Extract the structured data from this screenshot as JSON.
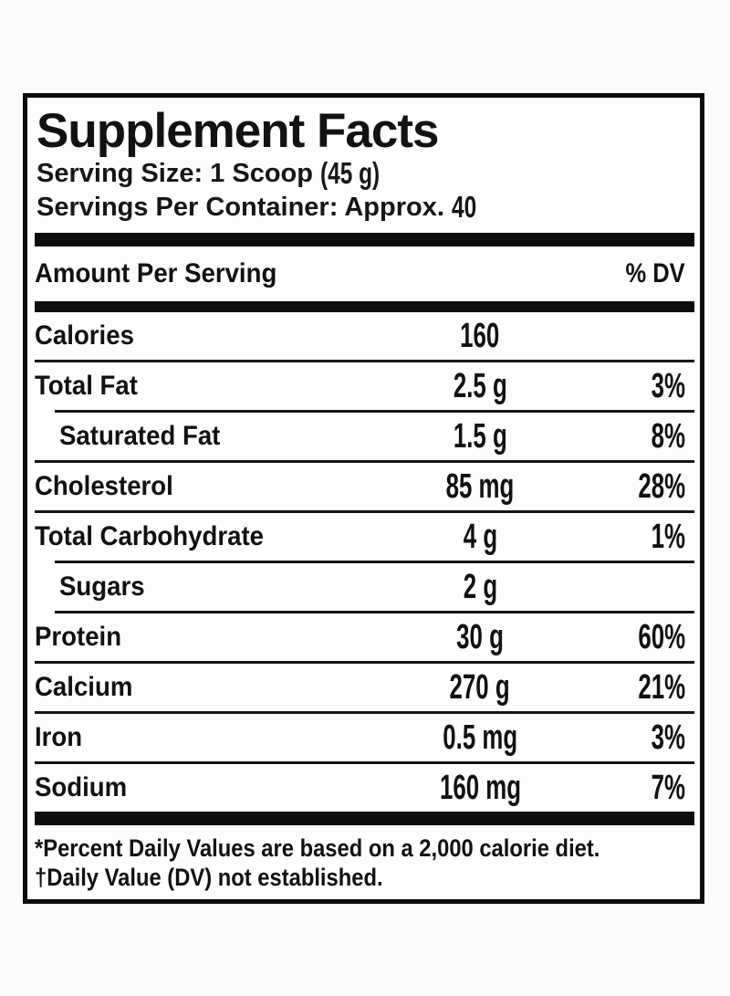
{
  "label": {
    "title": "Supplement Facts",
    "serving_size": {
      "prefix": "Serving Size: 1 Scoop",
      "value": "(45 g)"
    },
    "servings_per_container": {
      "prefix": "Servings Per Container: Approx.",
      "value": "40"
    },
    "header": {
      "amount_per_serving": "Amount Per Serving",
      "percent_dv": "% DV"
    },
    "rows": [
      {
        "name": "Calories",
        "amount": "160",
        "dv": "",
        "indent": false,
        "divider": "full"
      },
      {
        "name": "Total Fat",
        "amount": "2.5 g",
        "dv": "3%",
        "indent": false,
        "divider": "indented"
      },
      {
        "name": "Saturated Fat",
        "amount": "1.5 g",
        "dv": "8%",
        "indent": true,
        "divider": "full"
      },
      {
        "name": "Cholesterol",
        "amount": "85 mg",
        "dv": "28%",
        "indent": false,
        "divider": "full"
      },
      {
        "name": "Total Carbohydrate",
        "amount": "4 g",
        "dv": "1%",
        "indent": false,
        "divider": "indented"
      },
      {
        "name": "Sugars",
        "amount": "2 g",
        "dv": "",
        "indent": true,
        "divider": "indented"
      },
      {
        "name": "Protein",
        "amount": "30 g",
        "dv": "60%",
        "indent": false,
        "divider": "full"
      },
      {
        "name": "Calcium",
        "amount": "270 g",
        "dv": "21%",
        "indent": false,
        "divider": "full"
      },
      {
        "name": "Iron",
        "amount": "0.5 mg",
        "dv": "3%",
        "indent": false,
        "divider": "full"
      },
      {
        "name": "Sodium",
        "amount": "160 mg",
        "dv": "7%",
        "indent": false,
        "divider": "none"
      }
    ],
    "footnotes": [
      "*Percent Daily Values are based on a 2,000 calorie diet.",
      "†Daily Value (DV) not established."
    ],
    "colors": {
      "text": "#111111",
      "border": "#0d0d0d",
      "background": "#fdfdfd"
    }
  }
}
